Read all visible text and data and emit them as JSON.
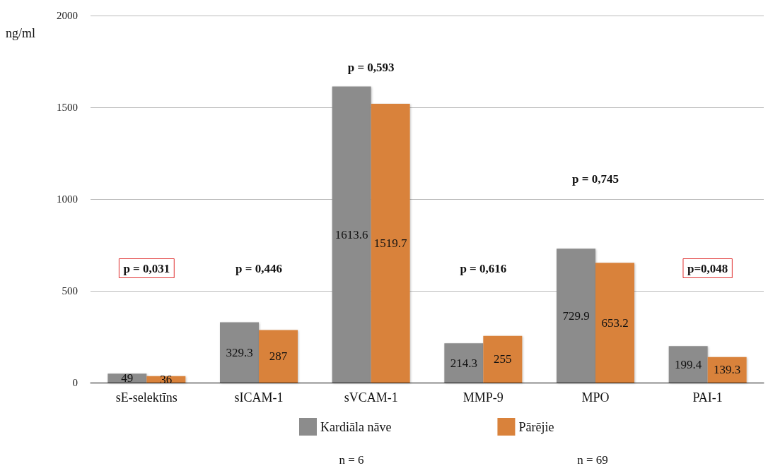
{
  "chart_data": {
    "type": "bar",
    "ylabel": "ng/ml",
    "categories": [
      "sE-selektīns",
      "sICAM-1",
      "sVCAM-1",
      "MMP-9",
      "MPO",
      "PAI-1"
    ],
    "series": [
      {
        "name": "Kardiāla nāve",
        "color": "#8c8c8c",
        "values": [
          49,
          329.3,
          1613.6,
          214.3,
          729.9,
          199.4
        ]
      },
      {
        "name": "Pārējie",
        "color": "#d9823b",
        "values": [
          36,
          287,
          1519.7,
          255,
          653.2,
          139.3
        ]
      }
    ],
    "ylim": [
      0,
      2000
    ],
    "yticks": [
      0,
      500,
      1000,
      1500,
      2000
    ],
    "grid": "y",
    "legend": "bottom",
    "data_labels": true,
    "annotations": [
      "p = 0,031",
      "p = 0,446",
      "p = 0,593",
      "p = 0,616",
      "p = 0,745",
      "p=0,048",
      "n = 6",
      "n = 69"
    ]
  }
}
